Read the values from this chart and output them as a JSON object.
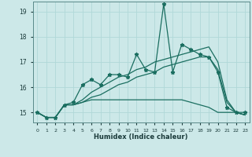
{
  "xlabel": "Humidex (Indice chaleur)",
  "bg_color": "#cce8e8",
  "grid_color": "#b0d8d8",
  "line_color": "#1a6e60",
  "x_values": [
    0,
    1,
    2,
    3,
    4,
    5,
    6,
    7,
    8,
    9,
    10,
    11,
    12,
    13,
    14,
    15,
    16,
    17,
    18,
    19,
    20,
    21,
    22,
    23
  ],
  "series": [
    [
      15.0,
      14.8,
      14.8,
      15.3,
      15.4,
      16.1,
      16.3,
      16.1,
      16.5,
      16.5,
      16.4,
      17.3,
      16.7,
      16.6,
      19.3,
      16.6,
      17.7,
      17.5,
      17.3,
      17.2,
      16.6,
      15.2,
      15.0,
      15.0
    ],
    [
      15.0,
      14.8,
      14.8,
      15.3,
      15.3,
      15.4,
      15.5,
      15.5,
      15.5,
      15.5,
      15.5,
      15.5,
      15.5,
      15.5,
      15.5,
      15.5,
      15.5,
      15.4,
      15.3,
      15.2,
      15.0,
      15.0,
      15.0,
      14.9
    ],
    [
      15.0,
      14.8,
      14.8,
      15.3,
      15.3,
      15.4,
      15.6,
      15.7,
      15.9,
      16.1,
      16.2,
      16.4,
      16.5,
      16.6,
      16.8,
      16.9,
      17.0,
      17.1,
      17.2,
      17.2,
      16.7,
      15.4,
      15.0,
      14.9
    ],
    [
      15.0,
      14.8,
      14.8,
      15.3,
      15.3,
      15.5,
      15.8,
      16.0,
      16.2,
      16.4,
      16.5,
      16.7,
      16.8,
      17.0,
      17.1,
      17.2,
      17.3,
      17.4,
      17.5,
      17.6,
      17.0,
      15.5,
      15.0,
      14.9
    ]
  ],
  "ylim": [
    14.6,
    19.4
  ],
  "yticks": [
    15,
    16,
    17,
    18,
    19
  ],
  "xtick_labels": [
    "0",
    "1",
    "2",
    "3",
    "4",
    "5",
    "6",
    "7",
    "8",
    "9",
    "10",
    "11",
    "12",
    "13",
    "14",
    "15",
    "16",
    "17",
    "18",
    "19",
    "20",
    "21",
    "22",
    "23"
  ]
}
